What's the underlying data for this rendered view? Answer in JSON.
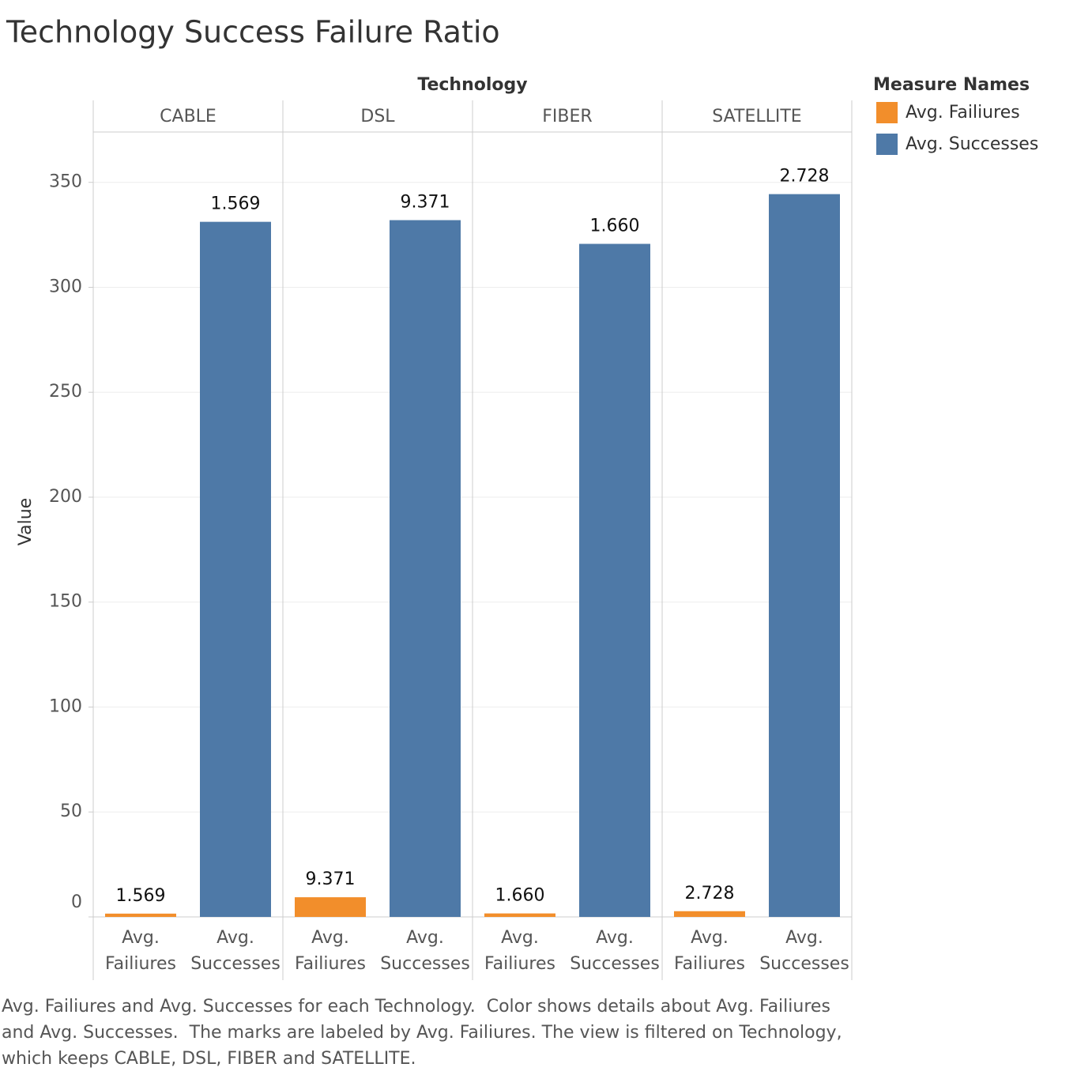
{
  "chart_data": {
    "type": "bar",
    "title": "Technology Success Failure Ratio",
    "column_header": "Technology",
    "categories": [
      "CABLE",
      "DSL",
      "FIBER",
      "SATELLITE"
    ],
    "y_label": "Value",
    "legend_title": "Measure Names",
    "series": [
      {
        "name": "Avg. Failiures",
        "color": "#f28e2b",
        "values": [
          1.569,
          9.371,
          1.66,
          2.728
        ],
        "value_labels": [
          "1.569",
          "9.371",
          "1.660",
          "2.728"
        ]
      },
      {
        "name": "Avg. Successes",
        "color": "#4e79a7",
        "values": [
          331.2,
          332,
          320.7,
          344.4
        ]
      }
    ],
    "ylim": [
      0,
      374
    ],
    "yticks": [
      0,
      50,
      100,
      150,
      200,
      250,
      300,
      350
    ],
    "grid": true,
    "caption": "Avg. Failiures and Avg. Successes for each Technology.  Color shows details about Avg. Failiures and Avg. Successes.  The marks are labeled by Avg. Failiures. The view is filtered on Technology, which keeps CABLE, DSL, FIBER and SATELLITE."
  }
}
